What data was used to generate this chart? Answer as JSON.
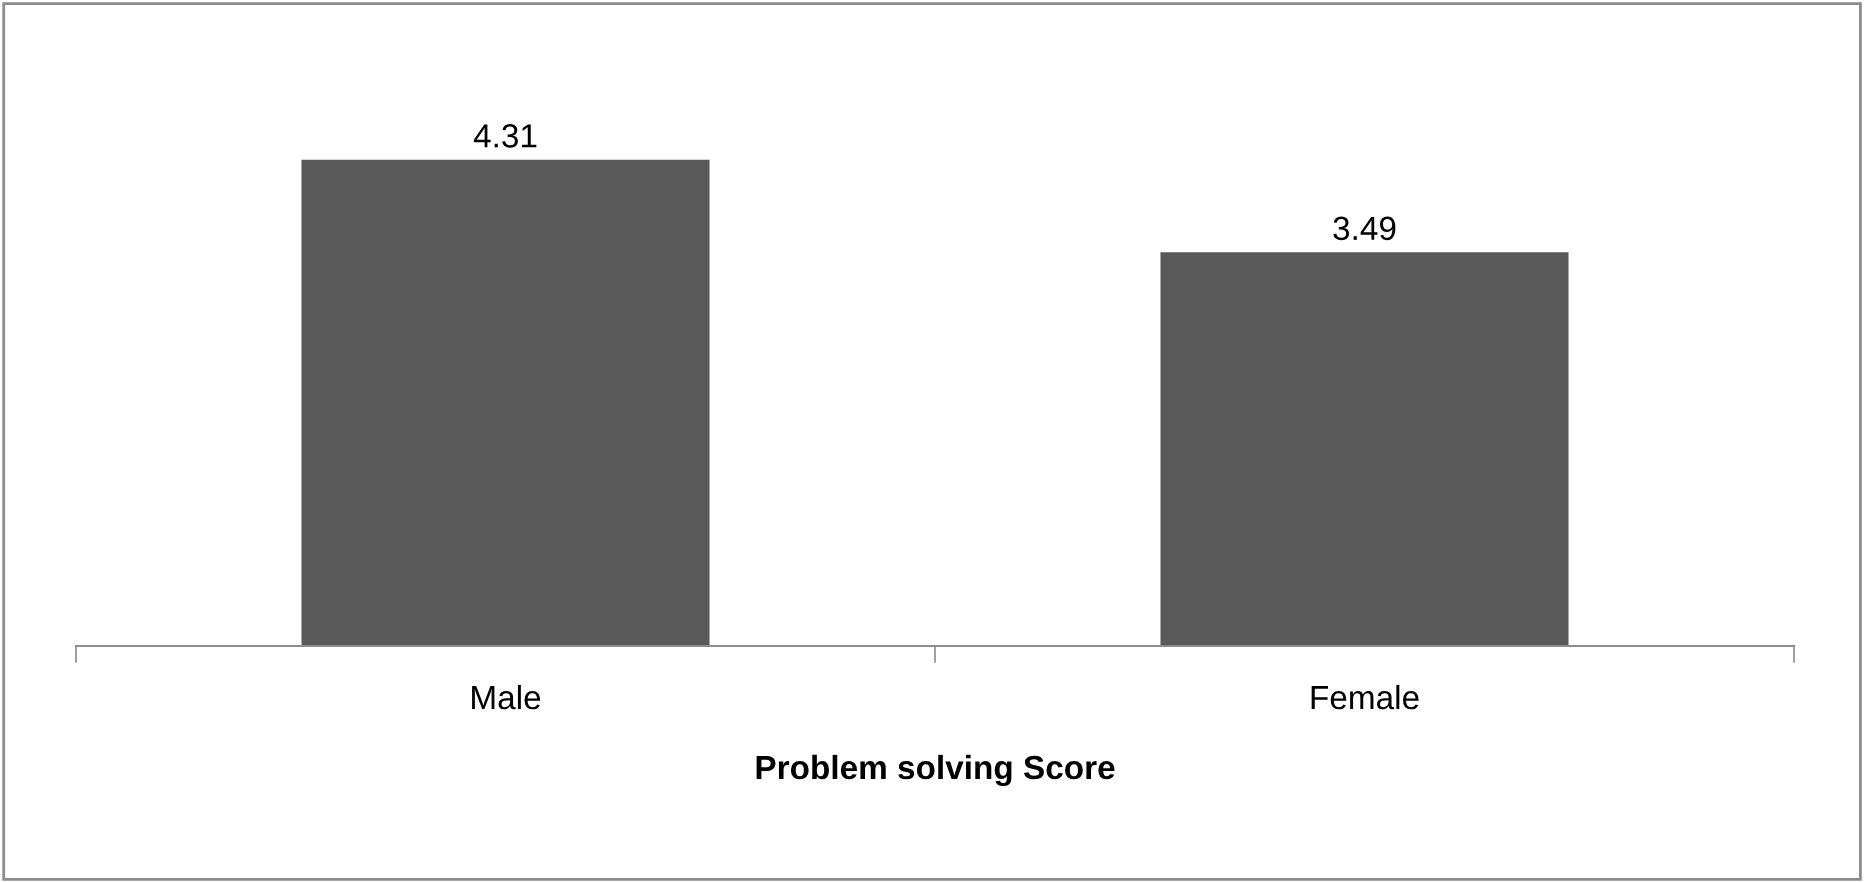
{
  "chart_data": {
    "type": "bar",
    "xlabel": "Problem solving Score",
    "categories": [
      "Male",
      "Female"
    ],
    "values": [
      4.31,
      3.49
    ],
    "color": "#595959",
    "data_labels": true,
    "grid": false,
    "legend": false
  }
}
